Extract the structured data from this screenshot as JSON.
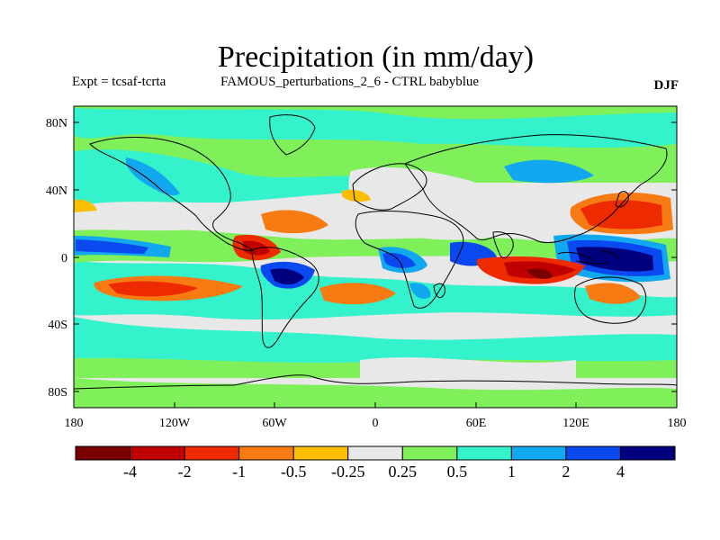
{
  "header": {
    "title": "Precipitation (in mm/day)",
    "left": "Expt = tcsaf-tcrta",
    "center": "FAMOUS_perturbations_2_6 - CTRL babyblue",
    "right": "DJF"
  },
  "axes": {
    "lat_ticks": [
      "80N",
      "40N",
      "0",
      "40S",
      "80S"
    ],
    "lon_ticks": [
      "180",
      "120W",
      "60W",
      "0",
      "60E",
      "120E",
      "180"
    ]
  },
  "colorbar": {
    "colors": [
      "#7a0000",
      "#c00000",
      "#ee2a00",
      "#f77b12",
      "#fbbf00",
      "#e8e8e8",
      "#7fef5a",
      "#33f2cc",
      "#12a8f0",
      "#0a48f0",
      "#00007f"
    ],
    "labels": [
      "-4",
      "-2",
      "-1",
      "-0.5",
      "-0.25",
      "0.25",
      "0.5",
      "1",
      "2",
      "4"
    ]
  },
  "chart_data": {
    "type": "heatmap",
    "title": "Precipitation (in mm/day)",
    "region": "global",
    "lon_range": [
      -180,
      180
    ],
    "lat_range": [
      -90,
      90
    ],
    "levels": [
      -4,
      -2,
      -1,
      -0.5,
      -0.25,
      0.25,
      0.5,
      1,
      2,
      4
    ],
    "features": [
      {
        "label": "wet anomaly over western tropical Pacific / Maritime Continent",
        "lon": [
          130,
          175
        ],
        "lat": [
          -15,
          8
        ],
        "level": "> 4"
      },
      {
        "label": "dry anomaly over central Indian Ocean",
        "lon": [
          65,
          115
        ],
        "lat": [
          -15,
          3
        ],
        "level": "-2 to -1"
      },
      {
        "label": "dry anomaly east of Japan",
        "lon": [
          130,
          175
        ],
        "lat": [
          25,
          42
        ],
        "level": "-2 to -1"
      },
      {
        "label": "dry anomaly over northern South America / eastern Pacific",
        "lon": [
          -95,
          -55
        ],
        "lat": [
          -5,
          10
        ],
        "level": "-2 to -1"
      },
      {
        "label": "wet anomaly over Amazon",
        "lon": [
          -75,
          -45
        ],
        "lat": [
          -20,
          -5
        ],
        "level": "> 4"
      },
      {
        "label": "dry band over South Pacific",
        "lon": [
          -165,
          -85
        ],
        "lat": [
          -25,
          -12
        ],
        "level": "-1 to -0.5"
      },
      {
        "label": "dry band over South Atlantic",
        "lon": [
          -30,
          10
        ],
        "lat": [
          -20,
          -8
        ],
        "level": "-1 to -0.5"
      },
      {
        "label": "wet anomaly over central Pacific ITCZ",
        "lon": [
          -180,
          -140
        ],
        "lat": [
          3,
          15
        ],
        "level": "2 to 4"
      },
      {
        "label": "wet anomaly over central Africa",
        "lon": [
          15,
          35
        ],
        "lat": [
          -5,
          5
        ],
        "level": "2 to 4"
      }
    ]
  }
}
